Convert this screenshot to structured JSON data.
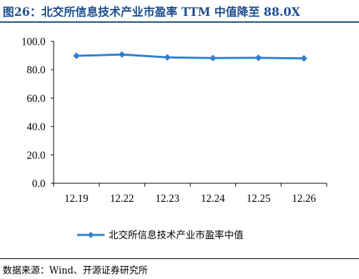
{
  "header": {
    "title": "图26：北交所信息技术产业市盈率 TTM 中值降至 88.0X"
  },
  "footer": {
    "source": "数据来源：Wind、开源证券研究所"
  },
  "colors": {
    "title": "#1f4e8c",
    "series": "#2e7fcf",
    "axis": "#000000"
  },
  "chart_data": {
    "type": "line",
    "categories": [
      "12.19",
      "12.22",
      "12.23",
      "12.24",
      "12.25",
      "12.26"
    ],
    "series": [
      {
        "name": "北交所信息技术产业市盈率中值",
        "values": [
          89.8,
          90.7,
          88.7,
          88.2,
          88.4,
          88.0
        ]
      }
    ],
    "ylim": [
      0,
      100
    ],
    "yticks": [
      "0.0",
      "20.0",
      "40.0",
      "60.0",
      "80.0",
      "100.0"
    ],
    "grid": false,
    "legend_position": "bottom",
    "marker": "diamond"
  }
}
